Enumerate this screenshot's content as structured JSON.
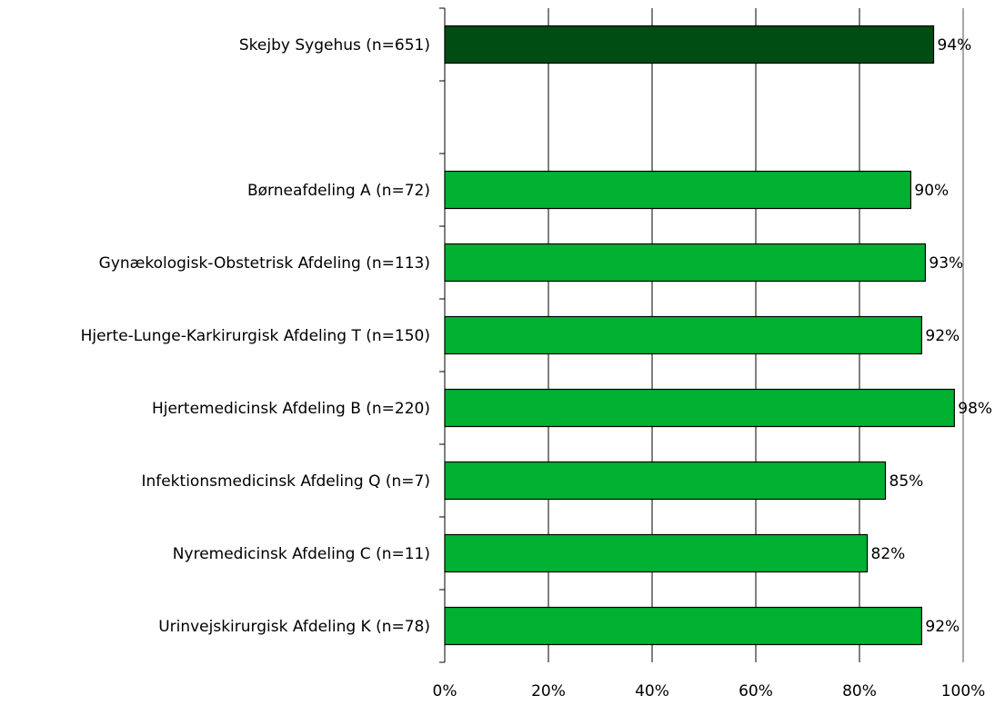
{
  "chart_data": {
    "type": "bar",
    "orientation": "horizontal",
    "categories": [
      "Skejby Sygehus (n=651)",
      "",
      "Børneafdeling A (n=72)",
      "Gynækologisk-Obstetrisk Afdeling (n=113)",
      "Hjerte-Lunge-Karkirurgisk Afdeling T (n=150)",
      "Hjertemedicinsk Afdeling B (n=220)",
      "Infektionsmedicinsk Afdeling Q (n=7)",
      "Nyremedicinsk Afdeling C (n=11)",
      "Urinvejskirurgisk Afdeling K (n=78)"
    ],
    "values": [
      94.3,
      null,
      89.9,
      92.7,
      92.0,
      98.3,
      85.0,
      81.5,
      92.0
    ],
    "value_labels": [
      "94%",
      "",
      "90%",
      "93%",
      "92%",
      "98%",
      "85%",
      "82%",
      "92%"
    ],
    "bar_colors": [
      "#004d14",
      null,
      "#00b132",
      "#00b132",
      "#00b132",
      "#00b132",
      "#00b132",
      "#00b132",
      "#00b132"
    ],
    "xlim": [
      0,
      100
    ],
    "x_ticks": [
      0,
      20,
      40,
      60,
      80,
      100
    ],
    "x_tick_labels": [
      "0%",
      "20%",
      "40%",
      "60%",
      "80%",
      "100%"
    ],
    "grid": "vertical",
    "legend": "none"
  }
}
